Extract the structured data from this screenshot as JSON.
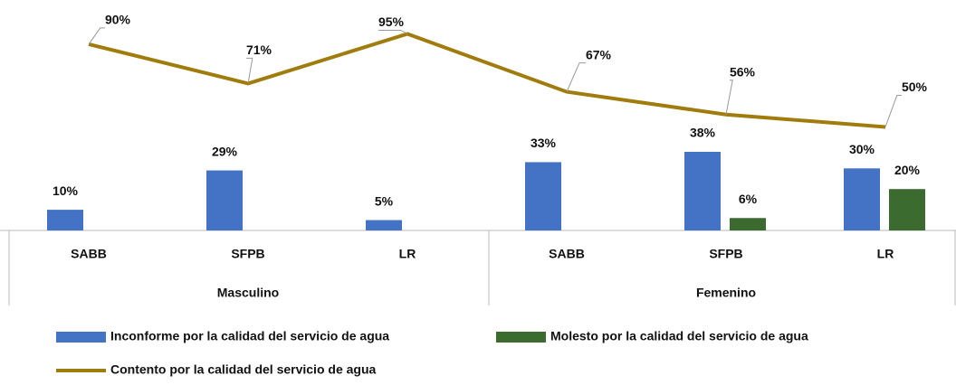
{
  "chart_data": {
    "type": "bar",
    "groups": [
      "Masculino",
      "Femenino"
    ],
    "categories": [
      "SABB",
      "SFPB",
      "LR",
      "SABB",
      "SFPB",
      "LR"
    ],
    "ylim": [
      0,
      100
    ],
    "series": [
      {
        "name": "Inconforme por la calidad del servicio de agua",
        "type": "bar",
        "color": "#4472c4",
        "values": [
          10,
          29,
          5,
          33,
          38,
          30
        ],
        "value_labels": [
          "10%",
          "29%",
          "5%",
          "33%",
          "38%",
          "30%"
        ]
      },
      {
        "name": "Molesto por la calidad del servicio de agua",
        "type": "bar",
        "color": "#3b6b2e",
        "values": [
          null,
          null,
          null,
          null,
          6,
          20
        ],
        "value_labels": [
          null,
          null,
          null,
          null,
          "6%",
          "20%"
        ]
      },
      {
        "name": "Contento por la calidad del servicio de agua",
        "type": "line",
        "color": "#a07c0c",
        "values": [
          90,
          71,
          95,
          67,
          56,
          50
        ],
        "value_labels": [
          "90%",
          "71%",
          "95%",
          "67%",
          "56%",
          "50%"
        ]
      }
    ]
  }
}
